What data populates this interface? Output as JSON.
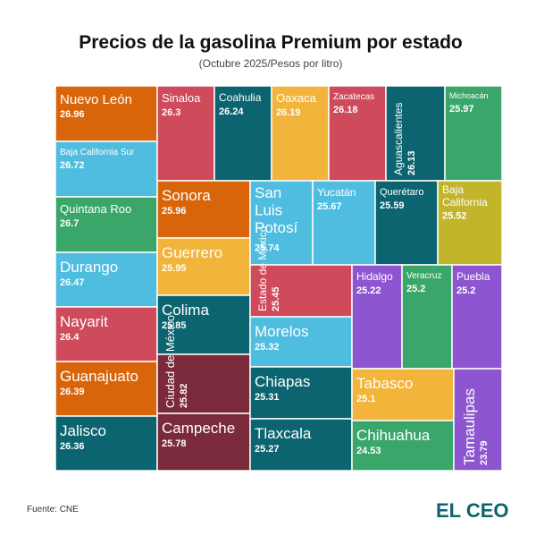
{
  "chart_data": {
    "type": "treemap",
    "title": "Precios de la gasolina Premium por estado",
    "subtitle": "(Octubre 2025/Pesos por litro)",
    "source": "Fuente: CNE",
    "brand": "EL CEO",
    "categories": [
      "Nuevo León",
      "Baja California Sur",
      "Quintana Roo",
      "Durango",
      "Nayarit",
      "Guanajuato",
      "Jalisco",
      "Sinaloa",
      "Coahulia",
      "Oaxaca",
      "Zacatecas",
      "Aguascalientes",
      "Michoacán",
      "Sonora",
      "Guerrero",
      "Colima",
      "Ciudad de México",
      "Campeche",
      "San Luis Potosí",
      "Yucatán",
      "Querétaro",
      "Baja California",
      "Estado de México",
      "Morelos",
      "Chiapas",
      "Tlaxcala",
      "Hidalgo",
      "Veracruz",
      "Puebla",
      "Tabasco",
      "Chihuahua",
      "Tamaulipas"
    ],
    "values": [
      26.96,
      26.72,
      26.7,
      26.47,
      26.4,
      26.39,
      26.36,
      26.3,
      26.24,
      26.19,
      26.18,
      26.13,
      25.97,
      25.96,
      25.95,
      25.85,
      25.82,
      25.78,
      25.74,
      25.67,
      25.59,
      25.52,
      25.45,
      25.32,
      25.31,
      25.27,
      25.22,
      25.2,
      25.2,
      25.1,
      24.53,
      23.79
    ],
    "colors": [
      "#d9650a",
      "#4fbde0",
      "#3aa66a",
      "#4fbde0",
      "#cf4a5b",
      "#d9650a",
      "#0c6470",
      "#cf4a5b",
      "#0c6470",
      "#f2b43a",
      "#cf4a5b",
      "#0c6470",
      "#3aa66a",
      "#d9650a",
      "#f2b43a",
      "#0c6470",
      "#7a2a3a",
      "#7a2a3a",
      "#4fbde0",
      "#4fbde0",
      "#0c6470",
      "#c2b52c",
      "#cf4a5b",
      "#4fbde0",
      "#0c6470",
      "#0c6470",
      "#8e55d0",
      "#3aa66a",
      "#8e55d0",
      "#f2b43a",
      "#3aa66a",
      "#8e55d0"
    ]
  }
}
